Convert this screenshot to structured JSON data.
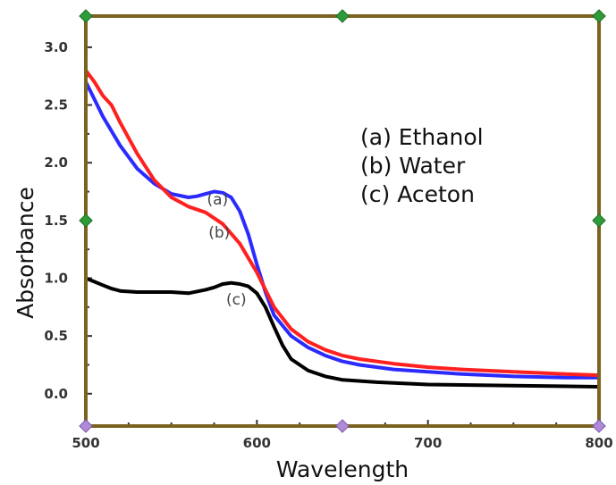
{
  "chart_data": {
    "type": "line",
    "xlabel": "Wavelength",
    "ylabel": "Absorbance",
    "xlim": [
      500,
      800
    ],
    "ylim": [
      -0.28,
      3.27
    ],
    "x_ticks": [
      500,
      600,
      700,
      800
    ],
    "y_ticks": [
      0.0,
      0.5,
      1.0,
      1.5,
      2.0,
      2.5,
      3.0
    ],
    "x_tick_labels": [
      "500",
      "600",
      "700",
      "800"
    ],
    "y_tick_labels": [
      "0.0",
      "0.5",
      "1.0",
      "1.5",
      "2.0",
      "2.5",
      "3.0"
    ],
    "frame_color": "#7a6220",
    "legend": {
      "position": "top-right",
      "entries": [
        "(a) Ethanol",
        "(b) Water",
        "(c) Aceton"
      ]
    },
    "series": [
      {
        "name": "(a) Ethanol",
        "color": "#2b2bff",
        "x": [
          500,
          505,
          510,
          520,
          530,
          540,
          550,
          560,
          565,
          570,
          575,
          580,
          585,
          590,
          595,
          600,
          605,
          610,
          620,
          630,
          640,
          650,
          660,
          680,
          700,
          720,
          750,
          780,
          800
        ],
        "y": [
          2.7,
          2.55,
          2.4,
          2.15,
          1.95,
          1.82,
          1.73,
          1.7,
          1.71,
          1.73,
          1.75,
          1.74,
          1.7,
          1.58,
          1.38,
          1.12,
          0.88,
          0.68,
          0.5,
          0.4,
          0.33,
          0.28,
          0.25,
          0.21,
          0.19,
          0.17,
          0.15,
          0.14,
          0.14
        ]
      },
      {
        "name": "(b) Water",
        "color": "#ff2020",
        "x": [
          500,
          505,
          510,
          515,
          520,
          530,
          540,
          550,
          560,
          570,
          580,
          590,
          600,
          605,
          610,
          620,
          630,
          640,
          650,
          660,
          680,
          700,
          720,
          750,
          780,
          800
        ],
        "y": [
          2.8,
          2.7,
          2.58,
          2.5,
          2.35,
          2.08,
          1.85,
          1.7,
          1.62,
          1.57,
          1.47,
          1.3,
          1.05,
          0.9,
          0.75,
          0.56,
          0.45,
          0.38,
          0.33,
          0.3,
          0.26,
          0.23,
          0.21,
          0.19,
          0.17,
          0.16
        ]
      },
      {
        "name": "(c) Aceton",
        "color": "#000000",
        "x": [
          500,
          505,
          510,
          515,
          520,
          530,
          540,
          550,
          560,
          570,
          575,
          580,
          585,
          590,
          595,
          600,
          605,
          610,
          615,
          620,
          630,
          640,
          650,
          670,
          700,
          750,
          800
        ],
        "y": [
          1.0,
          0.97,
          0.94,
          0.91,
          0.89,
          0.88,
          0.88,
          0.88,
          0.87,
          0.9,
          0.92,
          0.95,
          0.96,
          0.95,
          0.93,
          0.87,
          0.75,
          0.58,
          0.42,
          0.3,
          0.2,
          0.15,
          0.12,
          0.1,
          0.08,
          0.07,
          0.06
        ]
      }
    ],
    "curve_labels": [
      {
        "text": "(a)",
        "x": 577,
        "y": 1.64
      },
      {
        "text": "(b)",
        "x": 578,
        "y": 1.35
      },
      {
        "text": "(c)",
        "x": 588,
        "y": 0.77
      }
    ]
  }
}
